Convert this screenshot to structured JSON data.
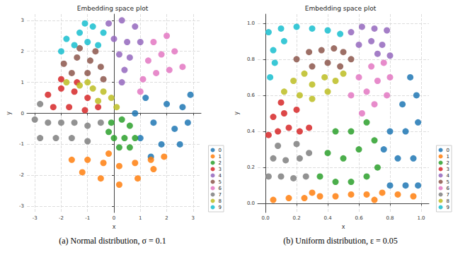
{
  "chart_data": [
    {
      "type": "scatter",
      "title": "Embedding space plot",
      "caption": "(a) Normal distribution, σ = 0.1",
      "x_label": "x",
      "y_label": "y",
      "xlim": [
        -3.3,
        3.3
      ],
      "xticks": [
        -3,
        -2,
        -1,
        0,
        1,
        2,
        3
      ],
      "ylim": [
        -3.2,
        3.2
      ],
      "yticks": [
        -3,
        -2,
        -1,
        0,
        1,
        2,
        3
      ],
      "grid": true,
      "legend": "lower right",
      "series": [
        {
          "name": "0",
          "color": "#1f77b4",
          "values": [
            [
              1.2,
              0.5
            ],
            [
              2.0,
              0.3
            ],
            [
              2.6,
              0.2
            ],
            [
              1.5,
              -0.3
            ],
            [
              2.3,
              -0.5
            ],
            [
              2.8,
              -0.3
            ],
            [
              1.0,
              -0.8
            ],
            [
              1.8,
              -1.0
            ],
            [
              2.5,
              -1.0
            ],
            [
              0.8,
              0.0
            ],
            [
              2.9,
              0.6
            ],
            [
              1.4,
              -1.4
            ]
          ]
        },
        {
          "name": "1",
          "color": "#ff7f0e",
          "values": [
            [
              -1.6,
              -1.5
            ],
            [
              -1.0,
              -1.5
            ],
            [
              -0.4,
              -1.6
            ],
            [
              0.2,
              -1.7
            ],
            [
              0.8,
              -1.6
            ],
            [
              1.4,
              -1.5
            ],
            [
              1.9,
              -1.4
            ],
            [
              -1.2,
              -1.9
            ],
            [
              -0.5,
              -2.1
            ],
            [
              0.2,
              -2.3
            ],
            [
              0.9,
              -2.1
            ],
            [
              1.5,
              -1.8
            ],
            [
              -0.2,
              -1.3
            ]
          ]
        },
        {
          "name": "2",
          "color": "#2ca02c",
          "values": [
            [
              -0.1,
              -0.3
            ],
            [
              0.3,
              -0.2
            ],
            [
              0.6,
              -0.4
            ],
            [
              0.0,
              -0.8
            ],
            [
              0.4,
              -0.8
            ],
            [
              0.8,
              -0.8
            ],
            [
              0.2,
              -1.1
            ],
            [
              0.6,
              -1.1
            ],
            [
              -0.2,
              -0.6
            ]
          ]
        },
        {
          "name": "3",
          "color": "#d62728",
          "values": [
            [
              -2.5,
              0.6
            ],
            [
              -2.0,
              0.8
            ],
            [
              -1.5,
              0.7
            ],
            [
              -1.0,
              0.5
            ],
            [
              -2.3,
              0.2
            ],
            [
              -1.7,
              0.2
            ],
            [
              -1.1,
              0.1
            ],
            [
              -0.6,
              0.2
            ],
            [
              -2.0,
              1.1
            ],
            [
              -1.4,
              1.0
            ]
          ]
        },
        {
          "name": "4",
          "color": "#9467bd",
          "values": [
            [
              -0.2,
              2.9
            ],
            [
              0.3,
              3.0
            ],
            [
              0.8,
              2.8
            ],
            [
              0.0,
              2.4
            ],
            [
              0.5,
              2.3
            ],
            [
              1.0,
              2.3
            ],
            [
              0.2,
              1.9
            ],
            [
              0.6,
              1.8
            ],
            [
              0.4,
              1.4
            ],
            [
              0.3,
              1.0
            ]
          ]
        },
        {
          "name": "5",
          "color": "#8c564b",
          "values": [
            [
              -1.9,
              1.6
            ],
            [
              -1.4,
              1.8
            ],
            [
              -0.9,
              1.7
            ],
            [
              -0.5,
              1.5
            ],
            [
              -1.6,
              1.3
            ],
            [
              -1.0,
              1.3
            ],
            [
              -0.4,
              1.1
            ],
            [
              -1.3,
              2.1
            ],
            [
              -0.7,
              2.0
            ]
          ]
        },
        {
          "name": "6",
          "color": "#e377c2",
          "values": [
            [
              1.1,
              1.1
            ],
            [
              1.6,
              1.3
            ],
            [
              2.1,
              1.4
            ],
            [
              2.6,
              1.5
            ],
            [
              1.3,
              1.7
            ],
            [
              1.8,
              1.9
            ],
            [
              2.3,
              2.0
            ],
            [
              1.5,
              2.3
            ],
            [
              2.0,
              2.5
            ],
            [
              1.0,
              0.7
            ]
          ]
        },
        {
          "name": "7",
          "color": "#7f7f7f",
          "values": [
            [
              -3.0,
              -0.2
            ],
            [
              -2.5,
              -0.3
            ],
            [
              -2.0,
              -0.3
            ],
            [
              -1.5,
              -0.3
            ],
            [
              -1.0,
              -0.4
            ],
            [
              -0.5,
              -0.3
            ],
            [
              -2.8,
              -0.8
            ],
            [
              -2.2,
              -0.8
            ],
            [
              -1.6,
              -0.8
            ],
            [
              -1.0,
              -0.9
            ],
            [
              -2.8,
              0.3
            ]
          ]
        },
        {
          "name": "8",
          "color": "#bcbd22",
          "values": [
            [
              -1.8,
              1.0
            ],
            [
              -1.3,
              0.9
            ],
            [
              -0.8,
              0.8
            ],
            [
              -0.4,
              0.7
            ],
            [
              -0.1,
              0.5
            ],
            [
              -1.0,
              1.0
            ],
            [
              -0.6,
              0.4
            ],
            [
              0.1,
              0.2
            ]
          ]
        },
        {
          "name": "9",
          "color": "#17becf",
          "values": [
            [
              -1.8,
              2.4
            ],
            [
              -1.3,
              2.6
            ],
            [
              -0.8,
              2.8
            ],
            [
              -0.4,
              2.6
            ],
            [
              -1.5,
              2.2
            ],
            [
              -1.0,
              2.3
            ],
            [
              -0.6,
              2.2
            ],
            [
              -1.1,
              2.9
            ],
            [
              -2.0,
              2.0
            ]
          ]
        }
      ]
    },
    {
      "type": "scatter",
      "title": "Embedding space plot",
      "caption": "(b) Uniform distribution, ε = 0.05",
      "x_label": "x",
      "y_label": "y",
      "xlim": [
        -0.05,
        1.05
      ],
      "xticks": [
        {
          "value": 0,
          "label": "0.0"
        },
        0.2,
        0.4,
        0.6,
        0.8,
        {
          "value": 1,
          "label": "1.0"
        }
      ],
      "ylim": [
        -0.05,
        1.05
      ],
      "yticks": [
        {
          "value": 0,
          "label": "0.0"
        },
        0.2,
        0.4,
        0.6,
        0.8,
        {
          "value": 1,
          "label": "1.0"
        }
      ],
      "grid": true,
      "legend": "lower right",
      "series": [
        {
          "name": "0",
          "color": "#1f77b4",
          "values": [
            [
              0.8,
              0.1
            ],
            [
              0.9,
              0.1
            ],
            [
              0.98,
              0.1
            ],
            [
              0.85,
              0.25
            ],
            [
              0.95,
              0.25
            ],
            [
              0.8,
              0.4
            ],
            [
              0.9,
              0.4
            ],
            [
              0.98,
              0.45
            ],
            [
              0.88,
              0.55
            ],
            [
              0.97,
              0.6
            ],
            [
              0.93,
              0.7
            ],
            [
              0.76,
              0.3
            ]
          ]
        },
        {
          "name": "1",
          "color": "#ff7f0e",
          "values": [
            [
              0.05,
              0.02
            ],
            [
              0.15,
              0.03
            ],
            [
              0.25,
              0.03
            ],
            [
              0.35,
              0.04
            ],
            [
              0.45,
              0.04
            ],
            [
              0.55,
              0.05
            ],
            [
              0.65,
              0.05
            ],
            [
              0.75,
              0.06
            ],
            [
              0.85,
              0.05
            ],
            [
              0.95,
              0.04
            ],
            [
              0.3,
              0.06
            ],
            [
              0.7,
              0.02
            ]
          ]
        },
        {
          "name": "2",
          "color": "#2ca02c",
          "values": [
            [
              0.35,
              0.15
            ],
            [
              0.45,
              0.12
            ],
            [
              0.55,
              0.12
            ],
            [
              0.65,
              0.15
            ],
            [
              0.72,
              0.2
            ],
            [
              0.4,
              0.28
            ],
            [
              0.5,
              0.25
            ],
            [
              0.6,
              0.3
            ],
            [
              0.7,
              0.35
            ],
            [
              0.55,
              0.4
            ],
            [
              0.65,
              0.45
            ],
            [
              0.45,
              0.4
            ]
          ]
        },
        {
          "name": "3",
          "color": "#d62728",
          "values": [
            [
              0.02,
              0.38
            ],
            [
              0.08,
              0.4
            ],
            [
              0.15,
              0.42
            ],
            [
              0.22,
              0.4
            ],
            [
              0.28,
              0.42
            ],
            [
              0.05,
              0.48
            ],
            [
              0.12,
              0.5
            ],
            [
              0.2,
              0.52
            ],
            [
              0.1,
              0.56
            ]
          ]
        },
        {
          "name": "4",
          "color": "#9467bd",
          "values": [
            [
              0.55,
              0.95
            ],
            [
              0.62,
              0.98
            ],
            [
              0.7,
              0.97
            ],
            [
              0.78,
              0.96
            ],
            [
              0.6,
              0.88
            ],
            [
              0.68,
              0.9
            ],
            [
              0.75,
              0.88
            ],
            [
              0.8,
              0.82
            ],
            [
              0.72,
              0.83
            ]
          ]
        },
        {
          "name": "5",
          "color": "#8c564b",
          "values": [
            [
              0.2,
              0.8
            ],
            [
              0.28,
              0.84
            ],
            [
              0.36,
              0.85
            ],
            [
              0.44,
              0.86
            ],
            [
              0.5,
              0.84
            ],
            [
              0.3,
              0.76
            ],
            [
              0.4,
              0.78
            ],
            [
              0.48,
              0.76
            ],
            [
              0.55,
              0.8
            ]
          ]
        },
        {
          "name": "6",
          "color": "#e377c2",
          "values": [
            [
              0.62,
              0.5
            ],
            [
              0.7,
              0.55
            ],
            [
              0.78,
              0.6
            ],
            [
              0.65,
              0.62
            ],
            [
              0.72,
              0.68
            ],
            [
              0.8,
              0.7
            ],
            [
              0.6,
              0.7
            ],
            [
              0.68,
              0.76
            ],
            [
              0.76,
              0.78
            ],
            [
              0.55,
              0.6
            ]
          ]
        },
        {
          "name": "7",
          "color": "#7f7f7f",
          "values": [
            [
              0.02,
              0.15
            ],
            [
              0.1,
              0.15
            ],
            [
              0.18,
              0.14
            ],
            [
              0.26,
              0.15
            ],
            [
              0.05,
              0.25
            ],
            [
              0.13,
              0.24
            ],
            [
              0.22,
              0.25
            ],
            [
              0.28,
              0.28
            ],
            [
              0.08,
              0.32
            ],
            [
              0.2,
              0.33
            ]
          ]
        },
        {
          "name": "8",
          "color": "#bcbd22",
          "values": [
            [
              0.12,
              0.62
            ],
            [
              0.18,
              0.68
            ],
            [
              0.25,
              0.72
            ],
            [
              0.22,
              0.6
            ],
            [
              0.3,
              0.66
            ],
            [
              0.38,
              0.7
            ],
            [
              0.3,
              0.58
            ],
            [
              0.4,
              0.62
            ],
            [
              0.45,
              0.68
            ],
            [
              0.5,
              0.72
            ]
          ]
        },
        {
          "name": "9",
          "color": "#17becf",
          "values": [
            [
              0.02,
              0.95
            ],
            [
              0.1,
              0.97
            ],
            [
              0.2,
              0.98
            ],
            [
              0.3,
              0.97
            ],
            [
              0.4,
              0.96
            ],
            [
              0.05,
              0.85
            ],
            [
              0.12,
              0.9
            ],
            [
              0.03,
              0.7
            ],
            [
              0.06,
              0.78
            ],
            [
              0.48,
              0.94
            ]
          ]
        }
      ]
    }
  ]
}
